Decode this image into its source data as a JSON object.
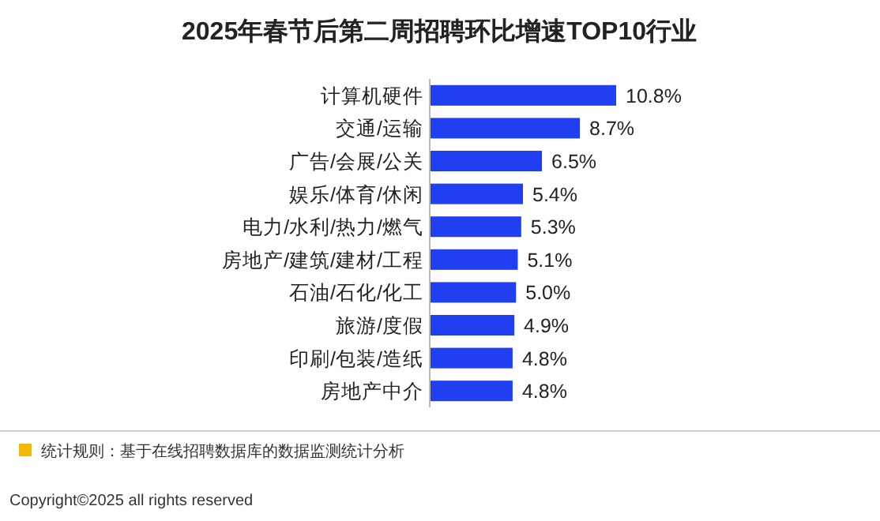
{
  "chart_data": {
    "type": "bar",
    "orientation": "horizontal",
    "title": "2025年春节后第二周招聘环比增速TOP10行业",
    "categories": [
      "计算机硬件",
      "交通/运输",
      "广告/会展/公关",
      "娱乐/体育/休闲",
      "电力/水利/热力/燃气",
      "房地产/建筑/建材/工程",
      "石油/石化/化工",
      "旅游/度假",
      "印刷/包装/造纸",
      "房地产中介"
    ],
    "values": [
      10.8,
      8.7,
      6.5,
      5.4,
      5.3,
      5.1,
      5.0,
      4.9,
      4.8,
      4.8
    ],
    "value_labels": [
      "10.8%",
      "8.7%",
      "6.5%",
      "5.4%",
      "5.3%",
      "5.1%",
      "5.0%",
      "4.9%",
      "4.8%",
      "4.8%"
    ],
    "color": "#1f3ff0",
    "annotations": [
      "统计规则：基于在线招聘数据库的数据监测统计分析",
      "Copyright©2025 all rights reserved"
    ]
  }
}
